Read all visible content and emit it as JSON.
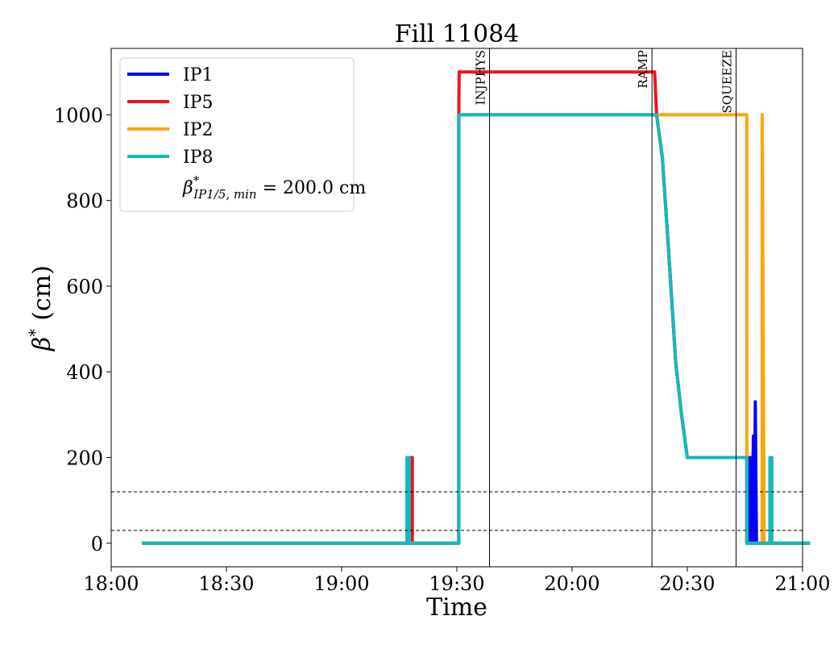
{
  "chart_data": {
    "type": "line",
    "title": "Fill 11084",
    "xlabel": "Time",
    "ylabel_symbol": "β",
    "ylabel_sup": "*",
    "ylabel_unit": "(cm)",
    "xlim": [
      "18:00",
      "21:00"
    ],
    "xlim_min": [
      0,
      180
    ],
    "ylim": [
      -55,
      1155
    ],
    "x_ticks": [
      {
        "label": "18:00",
        "min": 0
      },
      {
        "label": "18:30",
        "min": 30
      },
      {
        "label": "19:00",
        "min": 60
      },
      {
        "label": "19:30",
        "min": 90
      },
      {
        "label": "20:00",
        "min": 120
      },
      {
        "label": "20:30",
        "min": 150
      },
      {
        "label": "21:00",
        "min": 180
      }
    ],
    "y_ticks": [
      0,
      200,
      400,
      600,
      800,
      1000
    ],
    "grid": false,
    "legend": {
      "placement": "top-left",
      "note_symbol": "β",
      "note_sup": "*",
      "note_sub": "IP1/5, min",
      "note_value": " = 200.0 cm"
    },
    "hlines": [
      120,
      30
    ],
    "vlines": [
      {
        "label": "INJPHYS",
        "min": 98.5
      },
      {
        "label": "RAMP",
        "min": 140.8
      },
      {
        "label": "SQUEEZE",
        "min": 162.7
      }
    ],
    "series": [
      {
        "name": "IP1",
        "color": "#0000ff",
        "points": [
          [
            8,
            0
          ],
          [
            77,
            0
          ],
          [
            77,
            200
          ],
          [
            77.6,
            200
          ],
          [
            77.6,
            0
          ],
          [
            90.5,
            0
          ],
          [
            90.5,
            1000
          ],
          [
            142,
            1000
          ],
          [
            143.5,
            900
          ],
          [
            145,
            700
          ],
          [
            146,
            560
          ],
          [
            147,
            420
          ],
          [
            148.5,
            300
          ],
          [
            150,
            200
          ],
          [
            165.5,
            200
          ],
          [
            165.5,
            0
          ],
          [
            166,
            200
          ],
          [
            166.3,
            0
          ],
          [
            166.6,
            200
          ],
          [
            166.9,
            0
          ],
          [
            167.2,
            250
          ],
          [
            167.5,
            0
          ],
          [
            167.7,
            330
          ],
          [
            168,
            0
          ],
          [
            168.5,
            0
          ],
          [
            182,
            0
          ]
        ]
      },
      {
        "name": "IP5",
        "color": "#ee1122",
        "points": [
          [
            8,
            0
          ],
          [
            77.8,
            0
          ],
          [
            77.8,
            200
          ],
          [
            78.4,
            200
          ],
          [
            78.4,
            0
          ],
          [
            90.5,
            0
          ],
          [
            90.5,
            1000
          ],
          [
            90.6,
            1100
          ],
          [
            141.5,
            1100
          ],
          [
            142,
            1000
          ],
          [
            143.5,
            900
          ],
          [
            145,
            700
          ],
          [
            146,
            560
          ],
          [
            147,
            420
          ],
          [
            148.5,
            300
          ],
          [
            150,
            200
          ],
          [
            165.5,
            200
          ],
          [
            165.5,
            0
          ],
          [
            169.5,
            0
          ],
          [
            169.5,
            200
          ],
          [
            169.9,
            200
          ],
          [
            169.9,
            0
          ],
          [
            182,
            0
          ]
        ]
      },
      {
        "name": "IP2",
        "color": "#ffa500",
        "points": [
          [
            8,
            0
          ],
          [
            77,
            0
          ],
          [
            77,
            200
          ],
          [
            77.6,
            200
          ],
          [
            77.6,
            0
          ],
          [
            90.5,
            0
          ],
          [
            90.5,
            1000
          ],
          [
            165.5,
            1000
          ],
          [
            165.5,
            0
          ],
          [
            169.5,
            0
          ],
          [
            169.5,
            1000
          ],
          [
            170,
            0
          ],
          [
            182,
            0
          ]
        ]
      },
      {
        "name": "IP8",
        "color": "#11bbbb",
        "points": [
          [
            8,
            0
          ],
          [
            77,
            0
          ],
          [
            77,
            200
          ],
          [
            77.6,
            200
          ],
          [
            77.6,
            0
          ],
          [
            90.5,
            0
          ],
          [
            90.5,
            1000
          ],
          [
            142,
            1000
          ],
          [
            143.5,
            900
          ],
          [
            145,
            700
          ],
          [
            146,
            560
          ],
          [
            147,
            420
          ],
          [
            148.5,
            300
          ],
          [
            150,
            200
          ],
          [
            165.5,
            200
          ],
          [
            165.5,
            0
          ],
          [
            171.5,
            0
          ],
          [
            171.5,
            200
          ],
          [
            172,
            200
          ],
          [
            172,
            0
          ],
          [
            182,
            0
          ]
        ]
      }
    ]
  }
}
